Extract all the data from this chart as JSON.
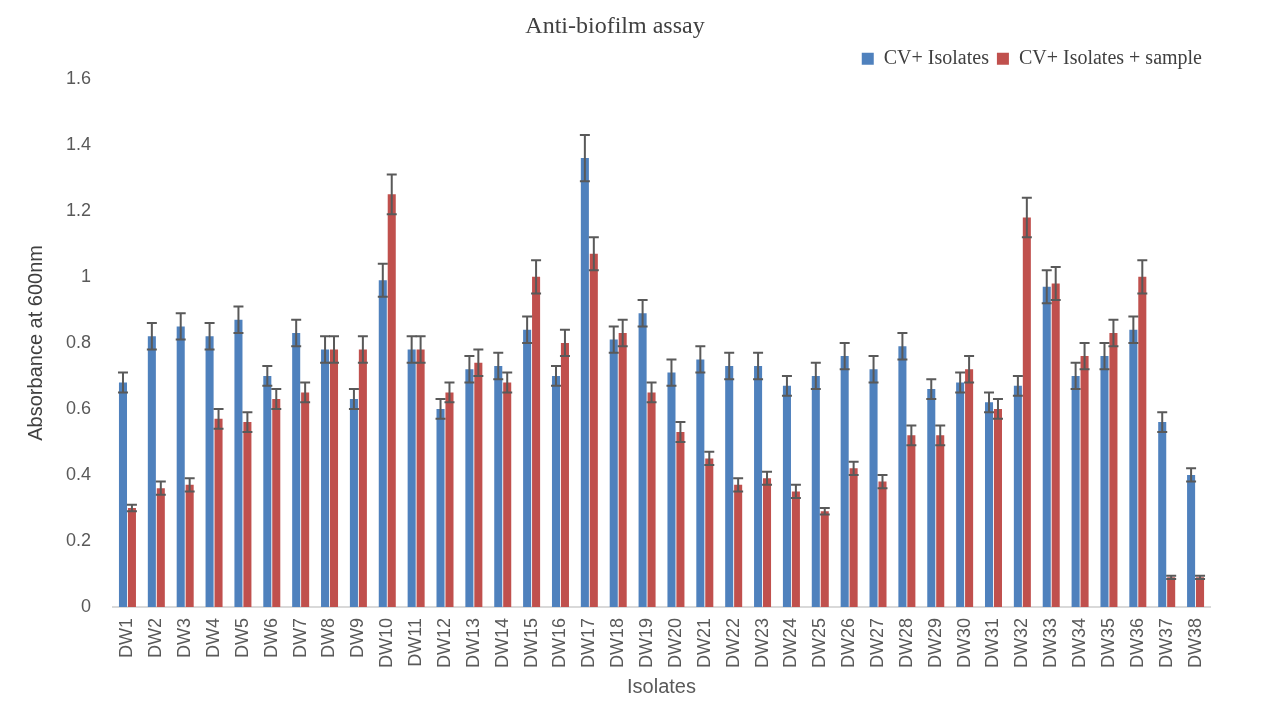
{
  "chart_data": {
    "type": "bar",
    "title": "Anti-biofilm assay",
    "xlabel": "Isolates",
    "ylabel": "Absorbance at 600nm",
    "categories": [
      "DW1",
      "DW2",
      "DW3",
      "DW4",
      "DW5",
      "DW6",
      "DW7",
      "DW8",
      "DW9",
      "DW10",
      "DW11",
      "DW12",
      "DW13",
      "DW14",
      "DW15",
      "DW16",
      "DW17",
      "DW18",
      "DW19",
      "DW20",
      "DW21",
      "DW22",
      "DW23",
      "DW24",
      "DW25",
      "DW26",
      "DW27",
      "DW28",
      "DW29",
      "DW30",
      "DW31",
      "DW32",
      "DW33",
      "DW34",
      "DW35",
      "DW36",
      "DW37",
      "DW38"
    ],
    "series": [
      {
        "name": "CV+ Isolates",
        "color": "#4f81bd",
        "values": [
          0.68,
          0.82,
          0.85,
          0.82,
          0.87,
          0.7,
          0.83,
          0.78,
          0.63,
          0.99,
          0.78,
          0.6,
          0.72,
          0.73,
          0.84,
          0.7,
          1.36,
          0.81,
          0.89,
          0.71,
          0.75,
          0.73,
          0.73,
          0.67,
          0.7,
          0.76,
          0.72,
          0.79,
          0.66,
          0.68,
          0.62,
          0.67,
          0.97,
          0.7,
          0.76,
          0.84,
          0.56,
          0.4
        ],
        "errors": [
          0.03,
          0.04,
          0.04,
          0.04,
          0.04,
          0.03,
          0.04,
          0.04,
          0.03,
          0.05,
          0.04,
          0.03,
          0.04,
          0.04,
          0.04,
          0.03,
          0.07,
          0.04,
          0.04,
          0.04,
          0.04,
          0.04,
          0.04,
          0.03,
          0.04,
          0.04,
          0.04,
          0.04,
          0.03,
          0.03,
          0.03,
          0.03,
          0.05,
          0.04,
          0.04,
          0.04,
          0.03,
          0.02
        ]
      },
      {
        "name": "CV+ Isolates + sample",
        "color": "#c0504d",
        "values": [
          0.3,
          0.36,
          0.37,
          0.57,
          0.56,
          0.63,
          0.65,
          0.78,
          0.78,
          1.25,
          0.78,
          0.65,
          0.74,
          0.68,
          1.0,
          0.8,
          1.07,
          0.83,
          0.65,
          0.53,
          0.45,
          0.37,
          0.39,
          0.35,
          0.29,
          0.42,
          0.38,
          0.52,
          0.52,
          0.72,
          0.6,
          1.18,
          0.98,
          0.76,
          0.83,
          1.0,
          0.09,
          0.09
        ],
        "errors": [
          0.01,
          0.02,
          0.02,
          0.03,
          0.03,
          0.03,
          0.03,
          0.04,
          0.04,
          0.06,
          0.04,
          0.03,
          0.04,
          0.03,
          0.05,
          0.04,
          0.05,
          0.04,
          0.03,
          0.03,
          0.02,
          0.02,
          0.02,
          0.02,
          0.01,
          0.02,
          0.02,
          0.03,
          0.03,
          0.04,
          0.03,
          0.06,
          0.05,
          0.04,
          0.04,
          0.05,
          0.005,
          0.005
        ]
      }
    ],
    "ylim": [
      0,
      1.6
    ],
    "yticks": [
      0,
      0.2,
      0.4,
      0.6,
      0.8,
      1,
      1.2,
      1.4,
      1.6
    ],
    "grid": false,
    "legend": "top right"
  }
}
